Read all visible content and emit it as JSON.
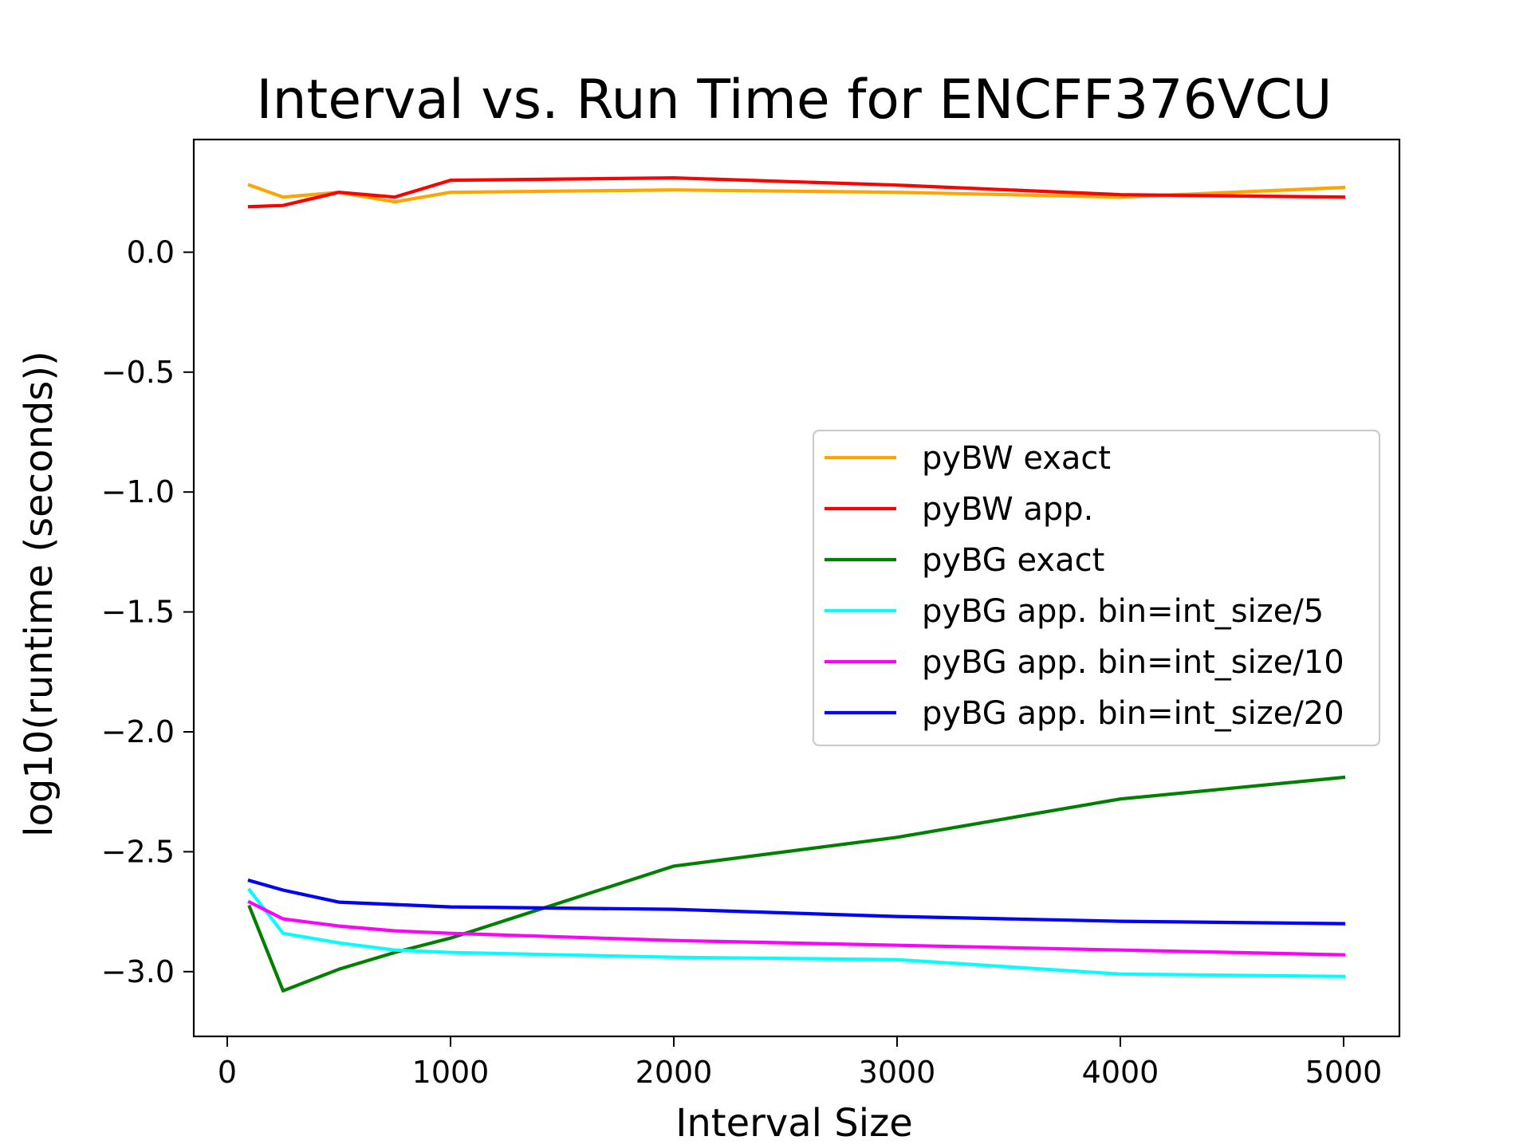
{
  "chart_data": {
    "type": "line",
    "title": "Interval vs. Run Time for ENCFF376VCU",
    "xlabel": "Interval Size",
    "ylabel": "log10(runtime (seconds))",
    "xlim": [
      -150,
      5250
    ],
    "ylim": [
      -3.27,
      0.47
    ],
    "x_ticks": [
      0,
      1000,
      2000,
      3000,
      4000,
      5000
    ],
    "x_tick_labels": [
      "0",
      "1000",
      "2000",
      "3000",
      "4000",
      "5000"
    ],
    "y_ticks": [
      0.0,
      -0.5,
      -1.0,
      -1.5,
      -2.0,
      -2.5,
      -3.0
    ],
    "y_tick_labels": [
      "0.0",
      "−0.5",
      "−1.0",
      "−1.5",
      "−2.0",
      "−2.5",
      "−3.0"
    ],
    "grid": false,
    "legend_position": "center-right",
    "x": [
      100,
      250,
      500,
      750,
      1000,
      2000,
      3000,
      4000,
      5000
    ],
    "series": [
      {
        "name": "pyBW exact",
        "color": "#FFA500",
        "values": [
          0.28,
          0.23,
          0.25,
          0.21,
          0.25,
          0.26,
          0.25,
          0.23,
          0.27
        ]
      },
      {
        "name": "pyBW app.",
        "color": "#FF0000",
        "values": [
          0.19,
          0.195,
          0.25,
          0.23,
          0.3,
          0.31,
          0.28,
          0.24,
          0.23
        ]
      },
      {
        "name": "pyBG exact",
        "color": "#008000",
        "values": [
          -2.73,
          -3.08,
          -2.99,
          -2.92,
          -2.86,
          -2.56,
          -2.44,
          -2.28,
          -2.19
        ]
      },
      {
        "name": "pyBG app. bin=int_size/5",
        "color": "#00FFFF",
        "values": [
          -2.66,
          -2.84,
          -2.88,
          -2.91,
          -2.92,
          -2.94,
          -2.95,
          -3.01,
          -3.02
        ]
      },
      {
        "name": "pyBG app. bin=int_size/10",
        "color": "#FF00FF",
        "values": [
          -2.71,
          -2.78,
          -2.81,
          -2.83,
          -2.84,
          -2.87,
          -2.89,
          -2.91,
          -2.93
        ]
      },
      {
        "name": "pyBG app. bin=int_size/20",
        "color": "#0000FF",
        "values": [
          -2.62,
          -2.66,
          -2.71,
          -2.72,
          -2.73,
          -2.74,
          -2.77,
          -2.79,
          -2.8
        ]
      }
    ]
  }
}
